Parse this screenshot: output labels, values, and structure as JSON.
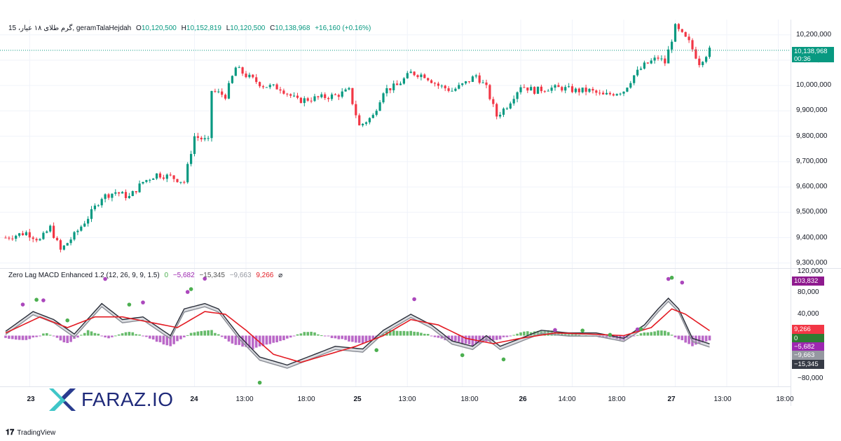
{
  "header": {
    "symbol": "15 ،گرم طلای ۱۸ عیار, geramTalaHejdah",
    "o_label": "O",
    "o_value": "10,120,500",
    "h_label": "H",
    "h_value": "10,152,819",
    "l_label": "L",
    "l_value": "10,120,500",
    "c_label": "C",
    "c_value": "10,138,968",
    "change": "+16,160 (+0.16%)"
  },
  "price_axis": {
    "labels": [
      "10,200,000",
      "10,100,000",
      "10,000,000",
      "9,900,000",
      "9,800,000",
      "9,700,000",
      "9,600,000",
      "9,500,000",
      "9,400,000",
      "9,300,000"
    ],
    "last_price": "10,138,968",
    "countdown": "00:36"
  },
  "indicator": {
    "title": "Zero Lag MACD Enhanced 1.2 (12, 26, 9, 9, 1.5)",
    "v0": "0",
    "v1": "−5,682",
    "v2": "−15,345",
    "v3": "−9,663",
    "v4": "9,266",
    "v5": "⌀",
    "axis_labels": [
      "120,000",
      "80,000",
      "40,000",
      "−80,000"
    ],
    "tags": [
      "103,832",
      "9,266",
      "0",
      "−5,682",
      "−9,663",
      "−15,345"
    ]
  },
  "time_axis": {
    "labels": [
      {
        "text": "23",
        "bold": true
      },
      {
        "text": "24",
        "bold": true
      },
      {
        "text": "13:00",
        "bold": false
      },
      {
        "text": "18:00",
        "bold": false
      },
      {
        "text": "25",
        "bold": true
      },
      {
        "text": "13:00",
        "bold": false
      },
      {
        "text": "18:00",
        "bold": false
      },
      {
        "text": "26",
        "bold": true
      },
      {
        "text": "14:00",
        "bold": false
      },
      {
        "text": "18:00",
        "bold": false
      },
      {
        "text": "27",
        "bold": true
      },
      {
        "text": "13:00",
        "bold": false
      },
      {
        "text": "18:00",
        "bold": false
      }
    ]
  },
  "watermark": {
    "text": "FARAZ.IO"
  },
  "branding": {
    "text": "TradingView"
  },
  "colors": {
    "up": "#089981",
    "down": "#f23645",
    "macd_red": "#e31b23",
    "hist_pos": "#66bb6a",
    "hist_neg": "#ba68c8",
    "grid": "#f0f3fa"
  },
  "chart_data": [
    {
      "type": "candlestick",
      "title": "15 ،گرم طلای ۱۸ عیار, geramTalaHejdah",
      "ylim": [
        9280000,
        10260000
      ],
      "anchors": [
        [
          0,
          9400000
        ],
        [
          6,
          9420000
        ],
        [
          10,
          9390000
        ],
        [
          13,
          9440000
        ],
        [
          16,
          9350000
        ],
        [
          20,
          9410000
        ],
        [
          24,
          9480000
        ],
        [
          28,
          9560000
        ],
        [
          32,
          9580000
        ],
        [
          36,
          9560000
        ],
        [
          40,
          9620000
        ],
        [
          44,
          9650000
        ],
        [
          48,
          9640000
        ],
        [
          52,
          9620000
        ],
        [
          55,
          9800000
        ],
        [
          59,
          9780000
        ],
        [
          60,
          9980000
        ],
        [
          64,
          9960000
        ],
        [
          67,
          10070000
        ],
        [
          70,
          10040000
        ],
        [
          75,
          10000000
        ],
        [
          80,
          9990000
        ],
        [
          85,
          9940000
        ],
        [
          90,
          9950000
        ],
        [
          96,
          9960000
        ],
        [
          100,
          9980000
        ],
        [
          103,
          9840000
        ],
        [
          107,
          9880000
        ],
        [
          110,
          9980000
        ],
        [
          114,
          10000000
        ],
        [
          118,
          10050000
        ],
        [
          122,
          10040000
        ],
        [
          126,
          10000000
        ],
        [
          130,
          9980000
        ],
        [
          134,
          10010000
        ],
        [
          137,
          10040000
        ],
        [
          140,
          9990000
        ],
        [
          143,
          9880000
        ],
        [
          146,
          9920000
        ],
        [
          150,
          10000000
        ],
        [
          154,
          9980000
        ],
        [
          158,
          9990000
        ],
        [
          162,
          9990000
        ],
        [
          166,
          9980000
        ],
        [
          170,
          9980000
        ],
        [
          174,
          9960000
        ],
        [
          177,
          9970000
        ],
        [
          180,
          9980000
        ],
        [
          183,
          10040000
        ],
        [
          186,
          10080000
        ],
        [
          190,
          10110000
        ],
        [
          192,
          10090000
        ],
        [
          195,
          10230000
        ],
        [
          199,
          10170000
        ],
        [
          202,
          10090000
        ],
        [
          205,
          10139000
        ]
      ]
    },
    {
      "type": "line",
      "title": "Zero Lag MACD Enhanced 1.2 (12, 26, 9, 9, 1.5)",
      "ylim": [
        -95000,
        125000
      ],
      "series": [
        {
          "name": "macd",
          "values": [
            [
              0,
              8000
            ],
            [
              8,
              45000
            ],
            [
              14,
              30000
            ],
            [
              20,
              3000
            ],
            [
              28,
              60000
            ],
            [
              34,
              30000
            ],
            [
              40,
              35000
            ],
            [
              48,
              0
            ],
            [
              52,
              50000
            ],
            [
              58,
              60000
            ],
            [
              62,
              50000
            ],
            [
              68,
              0
            ],
            [
              74,
              -40000
            ],
            [
              82,
              -55000
            ],
            [
              88,
              -40000
            ],
            [
              96,
              -20000
            ],
            [
              104,
              -25000
            ],
            [
              110,
              10000
            ],
            [
              118,
              40000
            ],
            [
              124,
              20000
            ],
            [
              130,
              -10000
            ],
            [
              136,
              -20000
            ],
            [
              140,
              0
            ],
            [
              144,
              -20000
            ],
            [
              148,
              -10000
            ],
            [
              156,
              10000
            ],
            [
              164,
              5000
            ],
            [
              172,
              5000
            ],
            [
              180,
              -5000
            ],
            [
              186,
              20000
            ],
            [
              190,
              50000
            ],
            [
              193,
              70000
            ],
            [
              196,
              50000
            ],
            [
              200,
              -5000
            ],
            [
              205,
              -15345
            ]
          ]
        },
        {
          "name": "signal",
          "values": [
            [
              0,
              5000
            ],
            [
              10,
              35000
            ],
            [
              18,
              15000
            ],
            [
              26,
              35000
            ],
            [
              34,
              35000
            ],
            [
              42,
              25000
            ],
            [
              50,
              15000
            ],
            [
              58,
              45000
            ],
            [
              64,
              40000
            ],
            [
              70,
              10000
            ],
            [
              78,
              -35000
            ],
            [
              86,
              -50000
            ],
            [
              94,
              -35000
            ],
            [
              102,
              -20000
            ],
            [
              110,
              0
            ],
            [
              118,
              30000
            ],
            [
              126,
              20000
            ],
            [
              134,
              -5000
            ],
            [
              142,
              -15000
            ],
            [
              150,
              -5000
            ],
            [
              160,
              5000
            ],
            [
              170,
              3000
            ],
            [
              180,
              0
            ],
            [
              188,
              15000
            ],
            [
              194,
              50000
            ],
            [
              198,
              40000
            ],
            [
              205,
              9266
            ]
          ]
        },
        {
          "name": "histogram",
          "values": [
            [
              0,
              -5000
            ],
            [
              6,
              -8000
            ],
            [
              12,
              5000
            ],
            [
              18,
              -15000
            ],
            [
              24,
              10000
            ],
            [
              30,
              -5000
            ],
            [
              36,
              8000
            ],
            [
              42,
              -6000
            ],
            [
              48,
              -20000
            ],
            [
              54,
              6000
            ],
            [
              60,
              10000
            ],
            [
              66,
              -15000
            ],
            [
              72,
              -25000
            ],
            [
              80,
              -10000
            ],
            [
              88,
              8000
            ],
            [
              96,
              -5000
            ],
            [
              104,
              -15000
            ],
            [
              112,
              10000
            ],
            [
              120,
              8000
            ],
            [
              128,
              -8000
            ],
            [
              136,
              -18000
            ],
            [
              144,
              -6000
            ],
            [
              150,
              6000
            ],
            [
              158,
              10000
            ],
            [
              166,
              2000
            ],
            [
              174,
              -3000
            ],
            [
              180,
              -8000
            ],
            [
              186,
              6000
            ],
            [
              192,
              10000
            ],
            [
              196,
              -6000
            ],
            [
              200,
              -20000
            ],
            [
              205,
              -9663
            ]
          ]
        }
      ]
    }
  ]
}
